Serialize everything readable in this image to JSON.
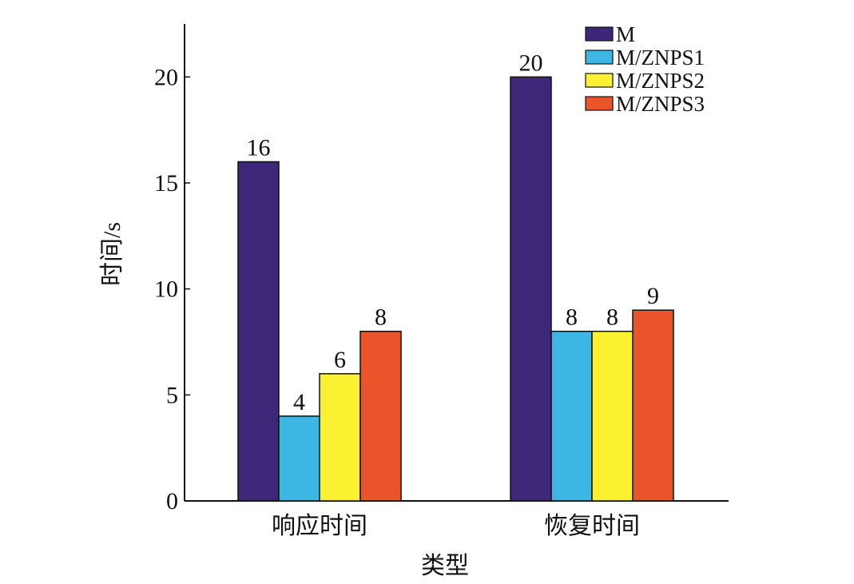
{
  "chart_data": {
    "type": "bar",
    "title": "",
    "xlabel": "类型",
    "ylabel": "时间/s",
    "categories": [
      "响应时间",
      "恢复时间"
    ],
    "series": [
      {
        "name": "M",
        "values": [
          16,
          20
        ],
        "color": "#3d2779"
      },
      {
        "name": "M/ZNPS1",
        "values": [
          4,
          8
        ],
        "color": "#3cb7e3"
      },
      {
        "name": "M/ZNPS2",
        "values": [
          6,
          8
        ],
        "color": "#fbf131"
      },
      {
        "name": "M/ZNPS3",
        "values": [
          8,
          9
        ],
        "color": "#e9542a"
      }
    ],
    "ylim": [
      0,
      22.5
    ],
    "yticks": [
      0,
      5,
      10,
      15,
      20
    ],
    "data_labels": true,
    "grid": false,
    "legend_position": "top-right"
  }
}
